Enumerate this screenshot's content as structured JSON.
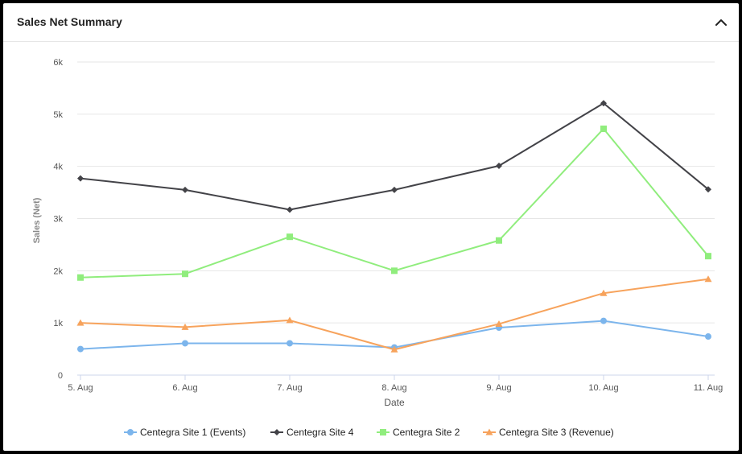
{
  "header": {
    "title": "Sales Net Summary",
    "collapse_icon": "chevron-up-icon"
  },
  "chart_data": {
    "type": "line",
    "title": "",
    "xlabel": "Date",
    "ylabel": "Sales (Net)",
    "categories": [
      "5. Aug",
      "6. Aug",
      "7. Aug",
      "8. Aug",
      "9. Aug",
      "10. Aug",
      "11. Aug"
    ],
    "y_ticks": [
      "0",
      "1k",
      "2k",
      "3k",
      "4k",
      "5k",
      "6k"
    ],
    "ylim": [
      0,
      6000
    ],
    "grid": true,
    "legend_position": "bottom-center",
    "series": [
      {
        "name": "Centegra Site 1 (Events)",
        "color": "#7cb5ec",
        "marker": "circle",
        "values": [
          500,
          610,
          610,
          530,
          910,
          1040,
          740
        ]
      },
      {
        "name": "Centegra Site 4",
        "color": "#434348",
        "marker": "diamond",
        "values": [
          3770,
          3550,
          3170,
          3550,
          4010,
          5210,
          3560
        ]
      },
      {
        "name": "Centegra Site 2",
        "color": "#90ed7d",
        "marker": "square",
        "values": [
          1870,
          1940,
          2650,
          2000,
          2580,
          4720,
          2280
        ]
      },
      {
        "name": "Centegra Site 3 (Revenue)",
        "color": "#f7a35c",
        "marker": "triangle",
        "values": [
          1000,
          920,
          1050,
          490,
          980,
          1570,
          1840
        ]
      }
    ]
  }
}
